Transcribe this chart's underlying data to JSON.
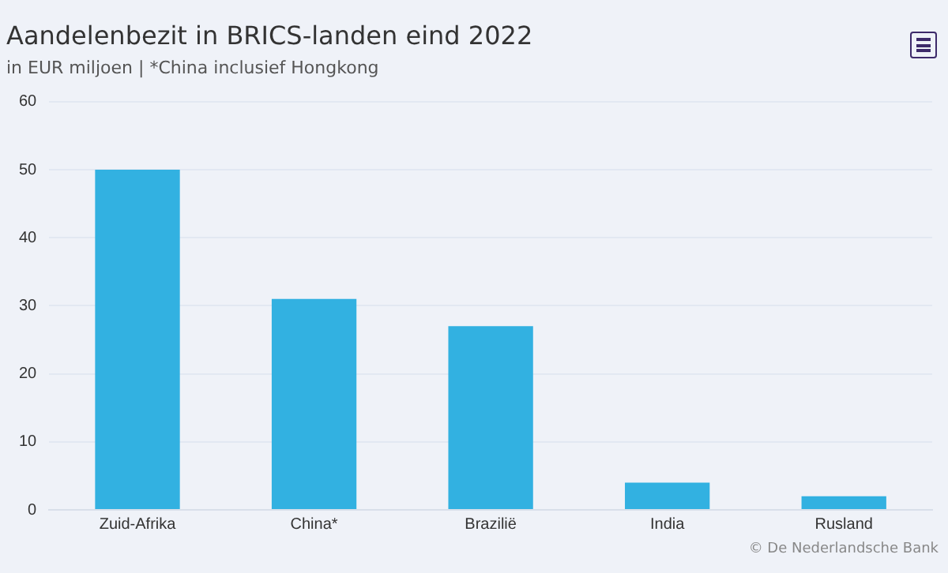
{
  "chart_data": {
    "type": "bar",
    "title": "Aandelenbezit in BRICS-landen eind 2022",
    "subtitle": "in EUR miljoen | *China inclusief Hongkong",
    "categories": [
      "Zuid-Afrika",
      "China*",
      "Brazilië",
      "India",
      "Rusland"
    ],
    "values": [
      50,
      31,
      27,
      4,
      2
    ],
    "color": "#32b1e1",
    "ylim": [
      0,
      60
    ],
    "yticks": [
      0,
      10,
      20,
      30,
      40,
      50,
      60
    ],
    "grid": "y",
    "legend": false,
    "annotations": [
      "© De Nederlandsche Bank"
    ]
  }
}
